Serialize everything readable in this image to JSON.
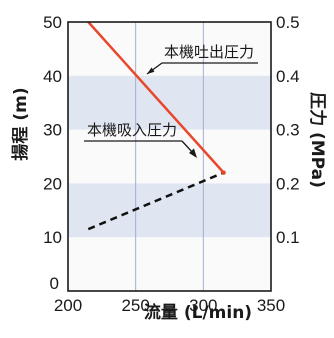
{
  "chart_data": {
    "type": "line",
    "xlabel": "流量 (L/min)",
    "ylabel": "揚程 (m)",
    "y2label": "圧力 (MPa)",
    "xlim": [
      200,
      350
    ],
    "ylim": [
      0,
      50
    ],
    "y2lim": [
      0,
      0.5
    ],
    "xticks": [
      "200",
      "250",
      "300",
      "350"
    ],
    "yticks": [
      "0",
      "10",
      "20",
      "30",
      "40",
      "50"
    ],
    "y2ticks": [
      "0.1",
      "0.2",
      "0.3",
      "0.4",
      "0.5"
    ],
    "grid": {
      "horizontal_bands": true,
      "vertical_lines": true
    },
    "colors": {
      "background": "#fafafa",
      "band": "#dfe6f2",
      "grid": "#9fb0cc",
      "discharge": "#e8472b",
      "suction": "#111111",
      "axis": "#1a1a1a"
    },
    "series": [
      {
        "name": "本機吐出圧力",
        "axis": "y2",
        "style": "solid",
        "x": [
          215,
          315
        ],
        "y": [
          0.5,
          0.22
        ]
      },
      {
        "name": "本機吸入圧力",
        "axis": "y2",
        "style": "dashed",
        "x": [
          215,
          315
        ],
        "y": [
          0.115,
          0.22
        ]
      }
    ],
    "annotations": [
      {
        "text": "本機吐出圧力",
        "series": 0
      },
      {
        "text": "本機吸入圧力",
        "series": 1
      }
    ]
  }
}
